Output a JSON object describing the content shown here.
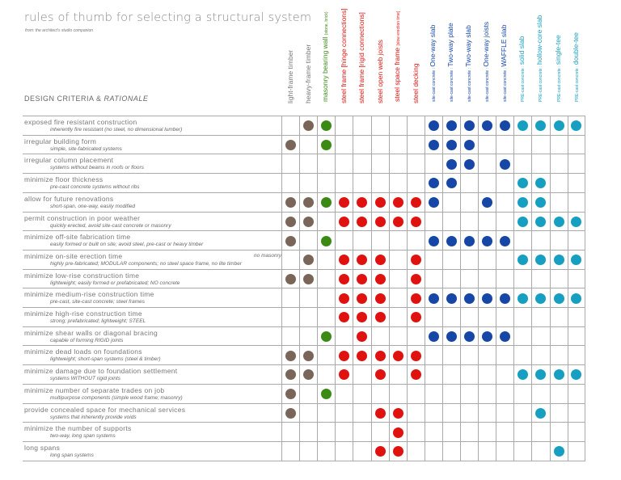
{
  "title": "rules of thumb for selecting a structural system",
  "subtitle": "from: the architect's studio companion",
  "criteria_header": {
    "main": "DESIGN CRITERIA & ",
    "italic": "RATIONALE"
  },
  "colors": {
    "timber": "#7a6658",
    "masonry": "#3a8a14",
    "steel": "#e0120f",
    "sitecast": "#1646a6",
    "precast": "#169fc0",
    "timber_text": "#777777"
  },
  "columns": [
    {
      "label": "light-frame timber",
      "small": "",
      "group": "timber"
    },
    {
      "label": "heavy-frame timber",
      "small": "",
      "group": "timber"
    },
    {
      "label": "masonry bearing wall ",
      "small": "(stone, brick)",
      "group": "masonry"
    },
    {
      "label": "steel frame [hinge connections]",
      "small": "",
      "group": "steel"
    },
    {
      "label": "steel frame [rigid connections]",
      "small": "",
      "group": "steel"
    },
    {
      "label": "steel open web joists",
      "small": "",
      "group": "steel"
    },
    {
      "label": "steel space frame ",
      "small": "[slow erection time]",
      "group": "steel"
    },
    {
      "label": "steel decking",
      "small": "",
      "group": "steel"
    },
    {
      "prefix": "site-cast concrete : ",
      "label": "One-way slab",
      "group": "sitecast"
    },
    {
      "prefix": "site-cast concrete : ",
      "label": "Two-way plate",
      "group": "sitecast"
    },
    {
      "prefix": "site-cast concrete : ",
      "label": "Two-way slab",
      "group": "sitecast"
    },
    {
      "prefix": "site-cast concrete : ",
      "label": "One-way joists",
      "group": "sitecast"
    },
    {
      "prefix": "site-cast concrete : ",
      "label": "WAFFLE slab",
      "group": "sitecast"
    },
    {
      "prefix": "PRE-cast concrete : ",
      "label": "solid slab",
      "group": "precast"
    },
    {
      "prefix": "PRE-cast concrete : ",
      "label": "hollow-core slab",
      "group": "precast"
    },
    {
      "prefix": "PRE-cast concrete : ",
      "label": "single-tee",
      "group": "precast"
    },
    {
      "prefix": "PRE-cast concrete : ",
      "label": "double-tee",
      "group": "precast"
    }
  ],
  "rows": [
    {
      "criterion": "exposed fire resistant construction",
      "rationale": "inherently fire resistant (no steel, no dimensional lumber)",
      "marks": "01100000111111111"
    },
    {
      "criterion": "irregular building form",
      "rationale": "simple, site-fabricated systems",
      "marks": "10100000111000000"
    },
    {
      "criterion": "irregular column placement",
      "rationale": "systems without beams in roofs or floors",
      "marks": "00000000011010000"
    },
    {
      "criterion": "minimize floor thickness",
      "rationale": "pre-cast concrete systems without ribs",
      "marks": "00000000110001100"
    },
    {
      "criterion": "allow for future renovations",
      "rationale": "short-span, one-way, easily modified",
      "marks": "11111111100101100"
    },
    {
      "criterion": "permit construction in poor weather",
      "rationale": "quickly erected, avoid site-cast concrete or masonry",
      "marks": "11011111000001111"
    },
    {
      "criterion": "minimize off-site fabrication time",
      "rationale": "easily formed or built on site; avoid steel, pre-cast or heavy timber",
      "marks": "10100000111110000"
    },
    {
      "criterion": "minimize on-site erection time",
      "aside": "no masonry",
      "rationale": "highly pre-fabricated; MODULAR components; no steel space frame, no lite timber",
      "marks": "01011101000001111"
    },
    {
      "criterion": "minimize low-rise construction time",
      "rationale": "lightweight; easily formed or prefabricated; NO concrete",
      "marks": "11011101000000000"
    },
    {
      "criterion": "minimize medium-rise construction time",
      "rationale": "pre-cast, site-cast concrete; steel frames",
      "marks": "00011101111111111"
    },
    {
      "criterion": "minimize high-rise construction time",
      "rationale": "strong; prefabricated; lightweight; STEEL",
      "marks": "00011101000000000"
    },
    {
      "criterion": "minimize shear walls or diagonal bracing",
      "rationale": "capable of forming RIGID joints",
      "marks": "00101000111110000"
    },
    {
      "criterion": "minimize dead loads on foundations",
      "rationale": "lightweight; short-span systems (steel & timber)",
      "marks": "11011111000000000"
    },
    {
      "criterion": "minimize damage due to foundation settlement",
      "rationale": "systems WITHOUT rigid joints",
      "marks": "11010101000001111"
    },
    {
      "criterion": "minimize number of separate trades on job",
      "rationale": "multipurpose components (simple wood frame; masonry)",
      "marks": "10100000000000000"
    },
    {
      "criterion": "provide concealed space for mechanical services",
      "rationale": "systems that inherently provide voids",
      "marks": "10000110000000100"
    },
    {
      "criterion": "minimize the number of supports",
      "rationale": "two-way, long span systems",
      "marks": "00000010000000000"
    },
    {
      "criterion": "long spans",
      "rationale": "long span systems",
      "marks": "00000110000000010"
    }
  ]
}
